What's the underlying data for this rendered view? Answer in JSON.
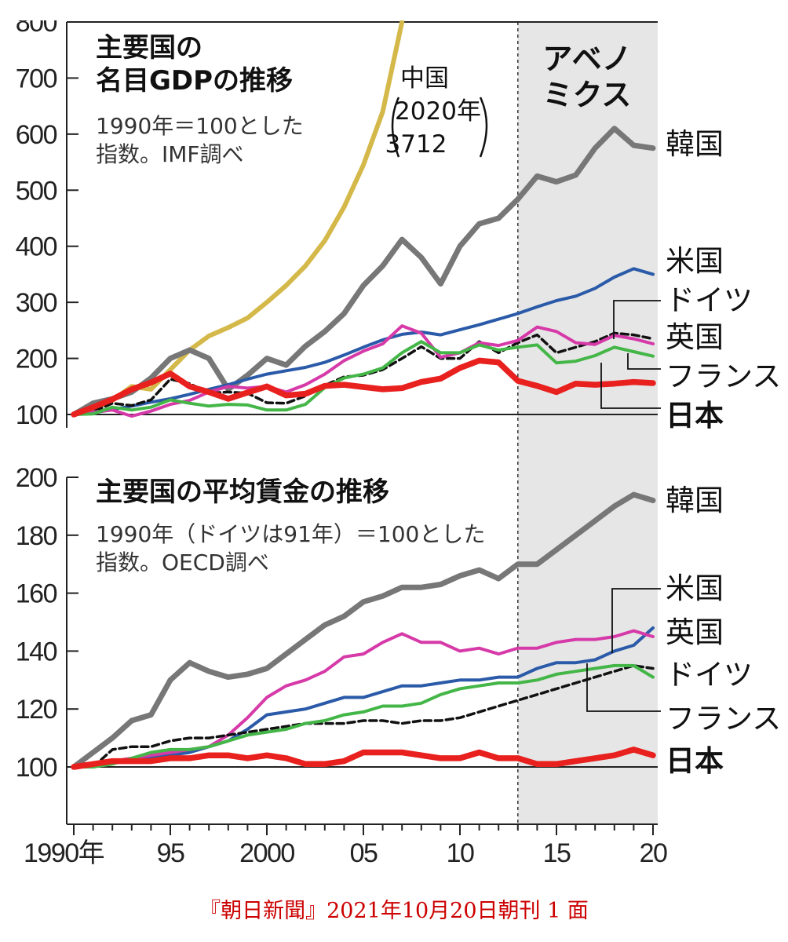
{
  "chart_data": [
    {
      "type": "line",
      "title": "主要国の\n名目GDPの推移",
      "subtitle": "1990年＝100とした\n指数。IMF調べ",
      "ylim": [
        100,
        800
      ],
      "yticks": [
        100,
        200,
        300,
        400,
        500,
        600,
        700,
        800
      ],
      "xlim": [
        1990,
        2020
      ],
      "grid": false,
      "annotation": {
        "label": "中国",
        "value": "2020年\n3712"
      },
      "series": [
        {
          "name": "中国",
          "color": "#d4b94a",
          "x": [
            1990,
            1991,
            1992,
            1993,
            1994,
            1995,
            1996,
            1997,
            1998,
            1999,
            2000,
            2001,
            2002,
            2003,
            2004,
            2005,
            2006,
            2007
          ],
          "y": [
            100,
            110,
            125,
            150,
            145,
            180,
            215,
            240,
            255,
            272,
            300,
            330,
            365,
            410,
            470,
            545,
            640,
            800
          ]
        },
        {
          "name": "韓国",
          "color": "#777777",
          "x": [
            1990,
            1991,
            1992,
            1993,
            1994,
            1995,
            1996,
            1997,
            1998,
            1999,
            2000,
            2001,
            2002,
            2003,
            2004,
            2005,
            2006,
            2007,
            2008,
            2009,
            2010,
            2011,
            2012,
            2013,
            2014,
            2015,
            2016,
            2017,
            2018,
            2019,
            2020
          ],
          "y": [
            100,
            120,
            128,
            140,
            165,
            200,
            215,
            200,
            145,
            170,
            200,
            188,
            222,
            248,
            280,
            330,
            365,
            412,
            380,
            333,
            400,
            440,
            450,
            484,
            525,
            515,
            527,
            575,
            610,
            580,
            575
          ]
        },
        {
          "name": "米国",
          "color": "#2a5aa8",
          "x": [
            1990,
            1991,
            1992,
            1993,
            1994,
            1995,
            1996,
            1997,
            1998,
            1999,
            2000,
            2001,
            2002,
            2003,
            2004,
            2005,
            2006,
            2007,
            2008,
            2009,
            2010,
            2011,
            2012,
            2013,
            2014,
            2015,
            2016,
            2017,
            2018,
            2019,
            2020
          ],
          "y": [
            100,
            103,
            109,
            115,
            122,
            128,
            136,
            145,
            153,
            163,
            172,
            178,
            184,
            193,
            206,
            220,
            233,
            243,
            247,
            242,
            251,
            260,
            270,
            280,
            292,
            303,
            311,
            325,
            345,
            360,
            350
          ]
        },
        {
          "name": "ドイツ",
          "color": "#111111",
          "x": [
            1990,
            1991,
            1992,
            1993,
            1994,
            1995,
            1996,
            1997,
            1998,
            1999,
            2000,
            2001,
            2002,
            2003,
            2004,
            2005,
            2006,
            2007,
            2008,
            2009,
            2010,
            2011,
            2012,
            2013,
            2014,
            2015,
            2016,
            2017,
            2018,
            2019,
            2020
          ],
          "y": [
            100,
            105,
            120,
            116,
            126,
            163,
            155,
            138,
            140,
            138,
            121,
            120,
            133,
            152,
            167,
            170,
            180,
            200,
            221,
            200,
            200,
            230,
            210,
            228,
            242,
            210,
            220,
            230,
            245,
            242,
            235
          ]
        },
        {
          "name": "英国",
          "color": "#d63aa8",
          "x": [
            1990,
            1991,
            1992,
            1993,
            1994,
            1995,
            1996,
            1997,
            1998,
            1999,
            2000,
            2001,
            2002,
            2003,
            2004,
            2005,
            2006,
            2007,
            2008,
            2009,
            2010,
            2011,
            2012,
            2013,
            2014,
            2015,
            2016,
            2017,
            2018,
            2019,
            2020
          ],
          "y": [
            100,
            104,
            108,
            97,
            106,
            118,
            125,
            140,
            150,
            147,
            150,
            140,
            153,
            172,
            196,
            213,
            226,
            258,
            245,
            202,
            210,
            228,
            223,
            232,
            256,
            248,
            228,
            225,
            241,
            235,
            226
          ]
        },
        {
          "name": "フランス",
          "color": "#44b648",
          "x": [
            1990,
            1991,
            1992,
            1993,
            1994,
            1995,
            1996,
            1997,
            1998,
            1999,
            2000,
            2001,
            2002,
            2003,
            2004,
            2005,
            2006,
            2007,
            2008,
            2009,
            2010,
            2011,
            2012,
            2013,
            2014,
            2015,
            2016,
            2017,
            2018,
            2019,
            2020
          ],
          "y": [
            100,
            101,
            113,
            108,
            113,
            126,
            120,
            115,
            118,
            117,
            108,
            108,
            118,
            148,
            165,
            172,
            183,
            210,
            230,
            210,
            210,
            224,
            215,
            220,
            224,
            192,
            195,
            205,
            220,
            212,
            204
          ]
        },
        {
          "name": "日本",
          "color": "#e8201e",
          "x": [
            1990,
            1991,
            1992,
            1993,
            1994,
            1995,
            1996,
            1997,
            1998,
            1999,
            2000,
            2001,
            2002,
            2003,
            2004,
            2005,
            2006,
            2007,
            2008,
            2009,
            2010,
            2011,
            2012,
            2013,
            2014,
            2015,
            2016,
            2017,
            2018,
            2019,
            2020
          ],
          "y": [
            100,
            113,
            127,
            145,
            157,
            173,
            150,
            140,
            128,
            139,
            150,
            134,
            137,
            151,
            153,
            149,
            145,
            147,
            158,
            164,
            183,
            196,
            193,
            160,
            151,
            140,
            155,
            153,
            155,
            158,
            156
          ]
        }
      ]
    },
    {
      "type": "line",
      "title": "主要国の平均賃金の推移",
      "subtitle": "1990年（ドイツは91年）＝100とした\n指数。OECD調べ",
      "ylim": [
        100,
        200
      ],
      "yticks": [
        100,
        120,
        140,
        160,
        180,
        200
      ],
      "xlim": [
        1990,
        2020
      ],
      "xticks": [
        1990,
        1995,
        2000,
        2005,
        2010,
        2015,
        2020
      ],
      "xticklabels": [
        "1990年",
        "95",
        "2000",
        "05",
        "10",
        "15",
        "20"
      ],
      "grid": false,
      "series": [
        {
          "name": "韓国",
          "color": "#777777",
          "x": [
            1990,
            1991,
            1992,
            1993,
            1994,
            1995,
            1996,
            1997,
            1998,
            1999,
            2000,
            2001,
            2002,
            2003,
            2004,
            2005,
            2006,
            2007,
            2008,
            2009,
            2010,
            2011,
            2012,
            2013,
            2014,
            2015,
            2016,
            2017,
            2018,
            2019,
            2020
          ],
          "y": [
            100,
            105,
            110,
            116,
            118,
            130,
            136,
            133,
            131,
            132,
            134,
            139,
            144,
            149,
            152,
            157,
            159,
            162,
            162,
            163,
            166,
            168,
            165,
            170,
            170,
            175,
            180,
            185,
            190,
            194,
            192
          ]
        },
        {
          "name": "米国",
          "color": "#2a5aa8",
          "x": [
            1990,
            1991,
            1992,
            1993,
            1994,
            1995,
            1996,
            1997,
            1998,
            1999,
            2000,
            2001,
            2002,
            2003,
            2004,
            2005,
            2006,
            2007,
            2008,
            2009,
            2010,
            2011,
            2012,
            2013,
            2014,
            2015,
            2016,
            2017,
            2018,
            2019,
            2020
          ],
          "y": [
            100,
            101,
            102,
            102,
            103,
            104,
            105,
            107,
            109,
            113,
            118,
            119,
            120,
            122,
            124,
            124,
            126,
            128,
            128,
            129,
            130,
            130,
            131,
            131,
            134,
            136,
            136,
            137,
            140,
            142,
            148
          ]
        },
        {
          "name": "英国",
          "color": "#d63aa8",
          "x": [
            1990,
            1991,
            1992,
            1993,
            1994,
            1995,
            1996,
            1997,
            1998,
            1999,
            2000,
            2001,
            2002,
            2003,
            2004,
            2005,
            2006,
            2007,
            2008,
            2009,
            2010,
            2011,
            2012,
            2013,
            2014,
            2015,
            2016,
            2017,
            2018,
            2019,
            2020
          ],
          "y": [
            100,
            101,
            102,
            103,
            104,
            105,
            106,
            107,
            111,
            117,
            124,
            128,
            130,
            133,
            138,
            139,
            143,
            146,
            143,
            143,
            140,
            141,
            139,
            141,
            141,
            143,
            144,
            144,
            145,
            147,
            145
          ]
        },
        {
          "name": "ドイツ",
          "color": "#111111",
          "x": [
            1991,
            1992,
            1993,
            1994,
            1995,
            1996,
            1997,
            1998,
            1999,
            2000,
            2001,
            2002,
            2003,
            2004,
            2005,
            2006,
            2007,
            2008,
            2009,
            2010,
            2011,
            2012,
            2013,
            2014,
            2015,
            2016,
            2017,
            2018,
            2019,
            2020
          ],
          "y": [
            100,
            106,
            107,
            107,
            109,
            110,
            110,
            111,
            112,
            113,
            114,
            115,
            115,
            115,
            116,
            116,
            115,
            116,
            116,
            117,
            119,
            121,
            123,
            125,
            127,
            129,
            131,
            133,
            135,
            134
          ]
        },
        {
          "name": "フランス",
          "color": "#44b648",
          "x": [
            1990,
            1991,
            1992,
            1993,
            1994,
            1995,
            1996,
            1997,
            1998,
            1999,
            2000,
            2001,
            2002,
            2003,
            2004,
            2005,
            2006,
            2007,
            2008,
            2009,
            2010,
            2011,
            2012,
            2013,
            2014,
            2015,
            2016,
            2017,
            2018,
            2019,
            2020
          ],
          "y": [
            100,
            100,
            101,
            103,
            105,
            106,
            106,
            107,
            109,
            111,
            112,
            113,
            115,
            116,
            118,
            119,
            121,
            121,
            122,
            125,
            127,
            128,
            129,
            129,
            130,
            132,
            133,
            134,
            135,
            135,
            131
          ]
        },
        {
          "name": "日本",
          "color": "#e8201e",
          "x": [
            1990,
            1991,
            1992,
            1993,
            1994,
            1995,
            1996,
            1997,
            1998,
            1999,
            2000,
            2001,
            2002,
            2003,
            2004,
            2005,
            2006,
            2007,
            2008,
            2009,
            2010,
            2011,
            2012,
            2013,
            2014,
            2015,
            2016,
            2017,
            2018,
            2019,
            2020
          ],
          "y": [
            100,
            101,
            102,
            102,
            102,
            103,
            103,
            104,
            104,
            103,
            104,
            103,
            101,
            101,
            102,
            105,
            105,
            105,
            104,
            103,
            103,
            105,
            103,
            103,
            101,
            101,
            102,
            103,
            104,
            106,
            104
          ]
        }
      ]
    }
  ],
  "abenomics": {
    "label": "アベノ\nミクス",
    "start_year": 2013,
    "end_year": 2020
  },
  "source": "『朝日新聞』2021年10月20日朝刊 1 面"
}
